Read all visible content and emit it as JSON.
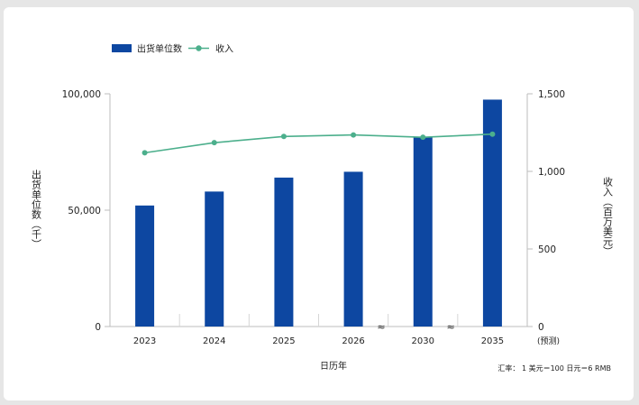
{
  "chart_data": {
    "type": "bar",
    "categories": [
      "2023",
      "2024",
      "2025",
      "2026",
      "2030",
      "2035"
    ],
    "series": [
      {
        "name": "出货单位数",
        "chart": "bar",
        "axis": "left",
        "values": [
          52000,
          58000,
          64000,
          66500,
          81500,
          97500
        ]
      },
      {
        "name": "收入",
        "chart": "line",
        "axis": "right",
        "values": [
          1120,
          1185,
          1225,
          1235,
          1220,
          1240
        ]
      }
    ],
    "y_left": {
      "label": "出货单位数（千）",
      "ylim": [
        0,
        100000
      ],
      "ticks": [
        "0",
        "50,000",
        "100,000"
      ]
    },
    "y_right": {
      "label": "收入（百万美元）",
      "ylim": [
        0,
        1500
      ],
      "ticks": [
        "0",
        "500",
        "1,000",
        "1,500"
      ]
    },
    "xlabel": "日历年",
    "forecast_label": "(预测)",
    "axis_break_marks": [
      "≈",
      "≈"
    ],
    "note": "汇率： 1 美元＝100 日元＝6 RMB",
    "legend": {
      "position": "top-left",
      "items": [
        "出货单位数",
        "收入"
      ]
    },
    "colors": {
      "bar": "#0d47a1",
      "line": "#4caf8c",
      "axis": "#bdbdbd"
    },
    "grid": false
  }
}
